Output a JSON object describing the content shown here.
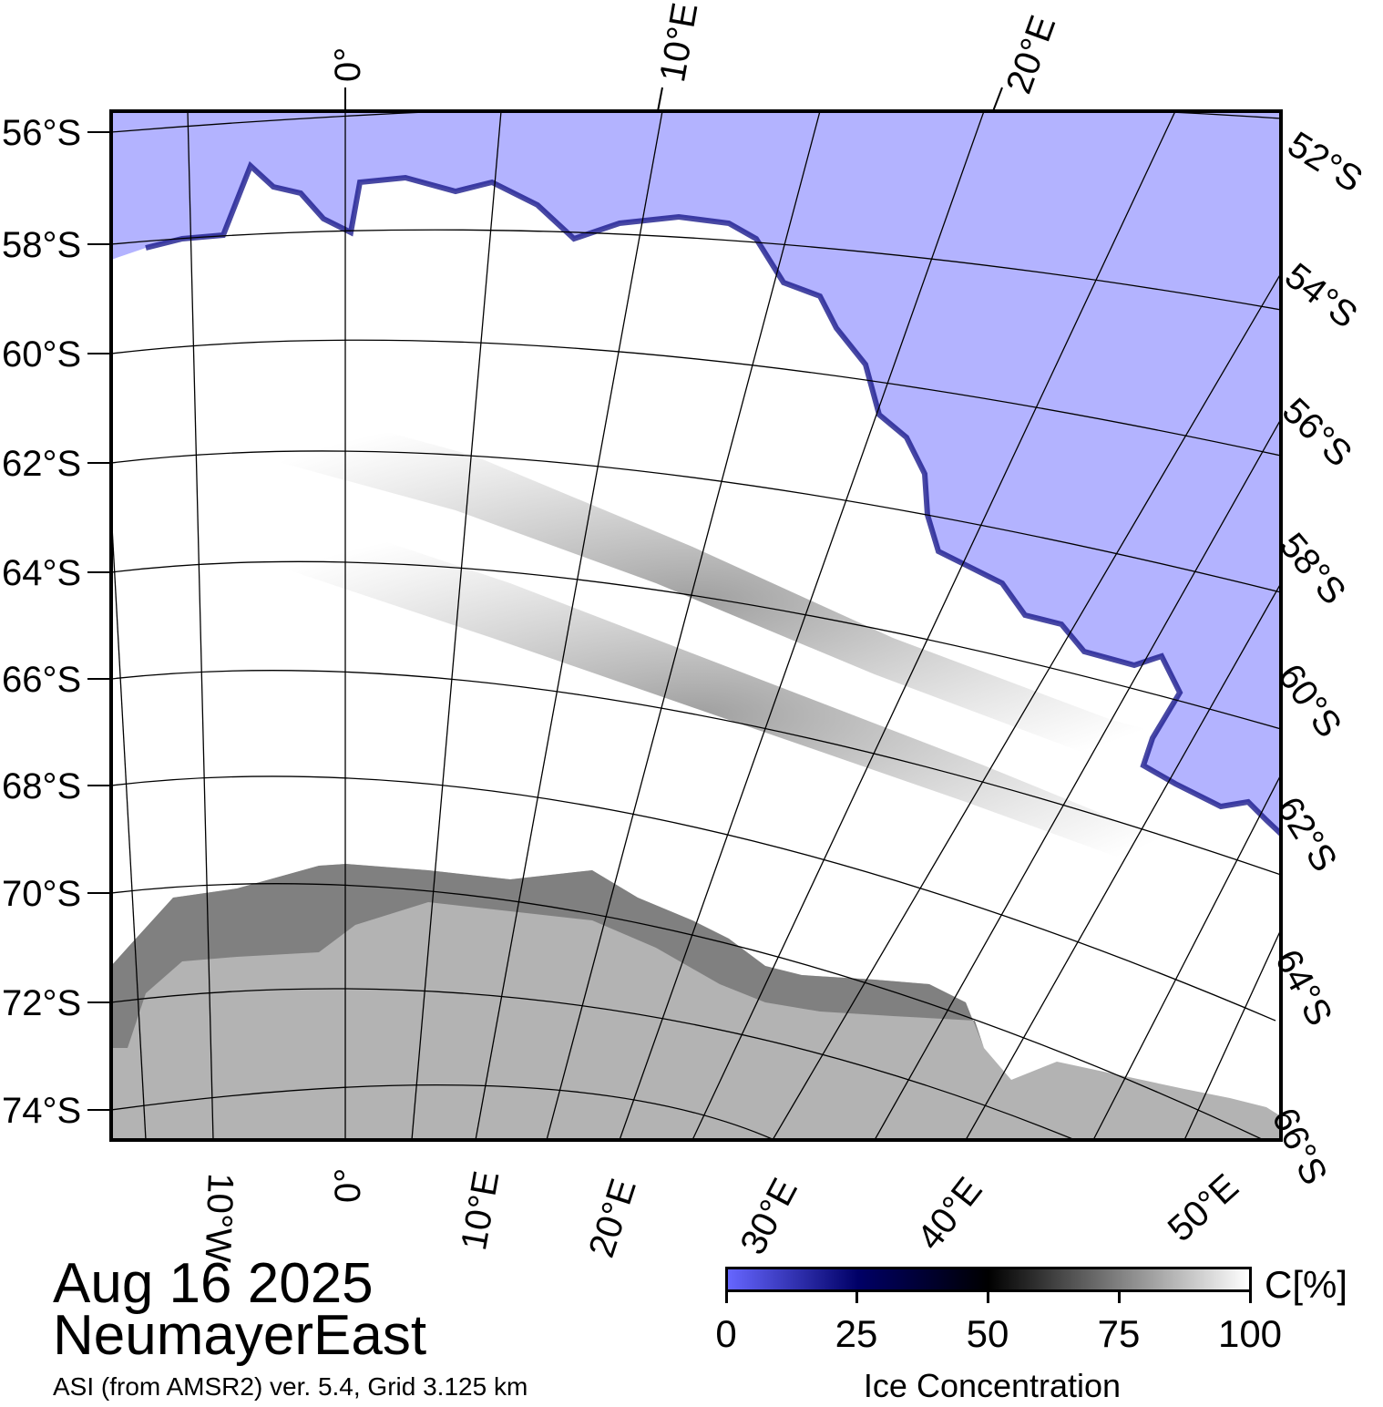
{
  "map": {
    "title_date": "Aug 16 2025",
    "region": "NeumayerEast",
    "source": "ASI (from AMSR2) ver. 5.4,  Grid 3.125 km",
    "colors": {
      "open_water": "#b3b3ff",
      "ice_high": "#ffffff",
      "land": "#b3b3b3",
      "ice_shelf": "#808080",
      "graticule": "#000000",
      "frame": "#000000"
    },
    "lat_labels_left": [
      "56°S",
      "58°S",
      "60°S",
      "62°S",
      "64°S",
      "66°S",
      "68°S",
      "70°S",
      "72°S",
      "74°S"
    ],
    "lat_labels_right": [
      "52°S",
      "54°S",
      "56°S",
      "58°S",
      "60°S",
      "62°S",
      "64°S",
      "66°S"
    ],
    "lon_labels_top": [
      "0°",
      "10°E",
      "20°E"
    ],
    "lon_labels_bottom": [
      "10°W",
      "0°",
      "10°E",
      "20°E",
      "30°E",
      "40°E",
      "50°E"
    ]
  },
  "colorbar": {
    "title": "Ice Concentration",
    "unit": "C[%]",
    "ticks": [
      "0",
      "25",
      "50",
      "75",
      "100"
    ],
    "gradient": [
      "#6666ff",
      "#000066",
      "#000000",
      "#808080",
      "#ffffff"
    ]
  }
}
